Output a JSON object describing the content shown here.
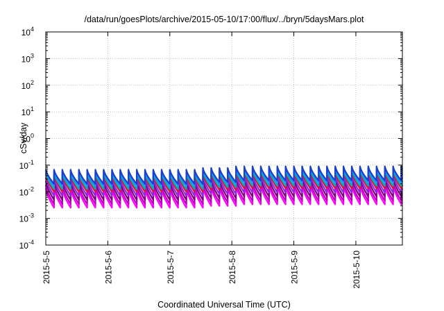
{
  "chart_data": {
    "type": "line",
    "title": "/data/run/goesPlots/archive/2015-05-10/17:00/flux/../bryn/5daysMars.plot",
    "xlabel": "Coordinated Universal Time (UTC)",
    "ylabel": "cSv/day",
    "y_scale": "log",
    "ylim": [
      0.0001,
      10000
    ],
    "xlim": [
      "2015-05-05 00:00",
      "2015-05-10 18:00"
    ],
    "x_ticks": [
      "2015-5-5",
      "2015-5-6",
      "2015-5-7",
      "2015-5-8",
      "2015-5-9",
      "2015-5-10"
    ],
    "y_ticks": [
      {
        "base": "10",
        "exp": "-4"
      },
      {
        "base": "10",
        "exp": "-3"
      },
      {
        "base": "10",
        "exp": "-2"
      },
      {
        "base": "10",
        "exp": "-1"
      },
      {
        "base": "10",
        "exp": "0"
      },
      {
        "base": "10",
        "exp": "1"
      },
      {
        "base": "10",
        "exp": "2"
      },
      {
        "base": "10",
        "exp": "3"
      },
      {
        "base": "10",
        "exp": "4"
      }
    ],
    "grid": true,
    "legend": "none",
    "sawtooth_period_hours": 3.2,
    "series": [
      {
        "color": "#ff00ff",
        "peak": 0.015,
        "trough": 0.0028
      },
      {
        "color": "#c000c0",
        "peak": 0.02,
        "trough": 0.0038
      },
      {
        "color": "#800080",
        "peak": 0.028,
        "trough": 0.0055
      },
      {
        "color": "#8a2be2",
        "peak": 0.038,
        "trough": 0.0078
      },
      {
        "color": "#e0103a",
        "peak": 0.05,
        "trough": 0.011
      },
      {
        "color": "#00b0b0",
        "peak": 0.058,
        "trough": 0.014
      },
      {
        "color": "#1e90ff",
        "peak": 0.068,
        "trough": 0.018
      },
      {
        "color": "#1a3fc8",
        "peak": 0.075,
        "trough": 0.022
      }
    ],
    "regime_factors": [
      {
        "from": "2015-05-05 00:00",
        "to": "2015-05-07 12:00",
        "factor": 0.9
      },
      {
        "from": "2015-05-07 12:00",
        "to": "2015-05-08 00:00",
        "factor": 1.05
      },
      {
        "from": "2015-05-08 00:00",
        "to": "2015-05-10 18:00",
        "factor": 1.2
      }
    ]
  }
}
